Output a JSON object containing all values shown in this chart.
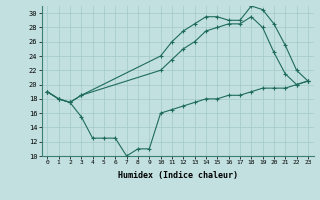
{
  "xlabel": "Humidex (Indice chaleur)",
  "ylabel": "",
  "bg_color": "#c2e0e0",
  "line_color": "#1e6b5e",
  "grid_color": "#b0d0d0",
  "ylim": [
    10,
    31
  ],
  "xlim": [
    -0.5,
    23.5
  ],
  "yticks": [
    10,
    12,
    14,
    16,
    18,
    20,
    22,
    24,
    26,
    28,
    30
  ],
  "xticks": [
    0,
    1,
    2,
    3,
    4,
    5,
    6,
    7,
    8,
    9,
    10,
    11,
    12,
    13,
    14,
    15,
    16,
    17,
    18,
    19,
    20,
    21,
    22,
    23
  ],
  "line1_x": [
    0,
    1,
    2,
    3,
    10,
    11,
    12,
    13,
    14,
    15,
    16,
    17,
    18,
    19,
    20,
    21,
    22,
    23
  ],
  "line1_y": [
    19,
    18,
    17.5,
    18.5,
    24,
    26,
    27.5,
    28.5,
    29.5,
    29.5,
    29,
    29,
    31,
    30.5,
    28.5,
    25.5,
    22,
    20.5
  ],
  "line2_x": [
    0,
    1,
    2,
    3,
    10,
    11,
    12,
    13,
    14,
    15,
    16,
    17,
    18,
    19,
    20,
    21,
    22,
    23
  ],
  "line2_y": [
    19,
    18,
    17.5,
    18.5,
    22,
    23.5,
    25,
    26,
    27.5,
    28,
    28.5,
    28.5,
    29.5,
    28,
    24.5,
    21.5,
    20,
    20.5
  ],
  "line3_x": [
    0,
    1,
    2,
    3,
    4,
    5,
    6,
    7,
    8,
    9,
    10,
    11,
    12,
    13,
    14,
    15,
    16,
    17,
    18,
    19,
    20,
    21,
    22,
    23
  ],
  "line3_y": [
    19,
    18,
    17.5,
    15.5,
    12.5,
    12.5,
    12.5,
    10,
    11,
    11,
    16,
    16.5,
    17,
    17.5,
    18,
    18,
    18.5,
    18.5,
    19,
    19.5,
    19.5,
    19.5,
    20,
    20.5
  ]
}
